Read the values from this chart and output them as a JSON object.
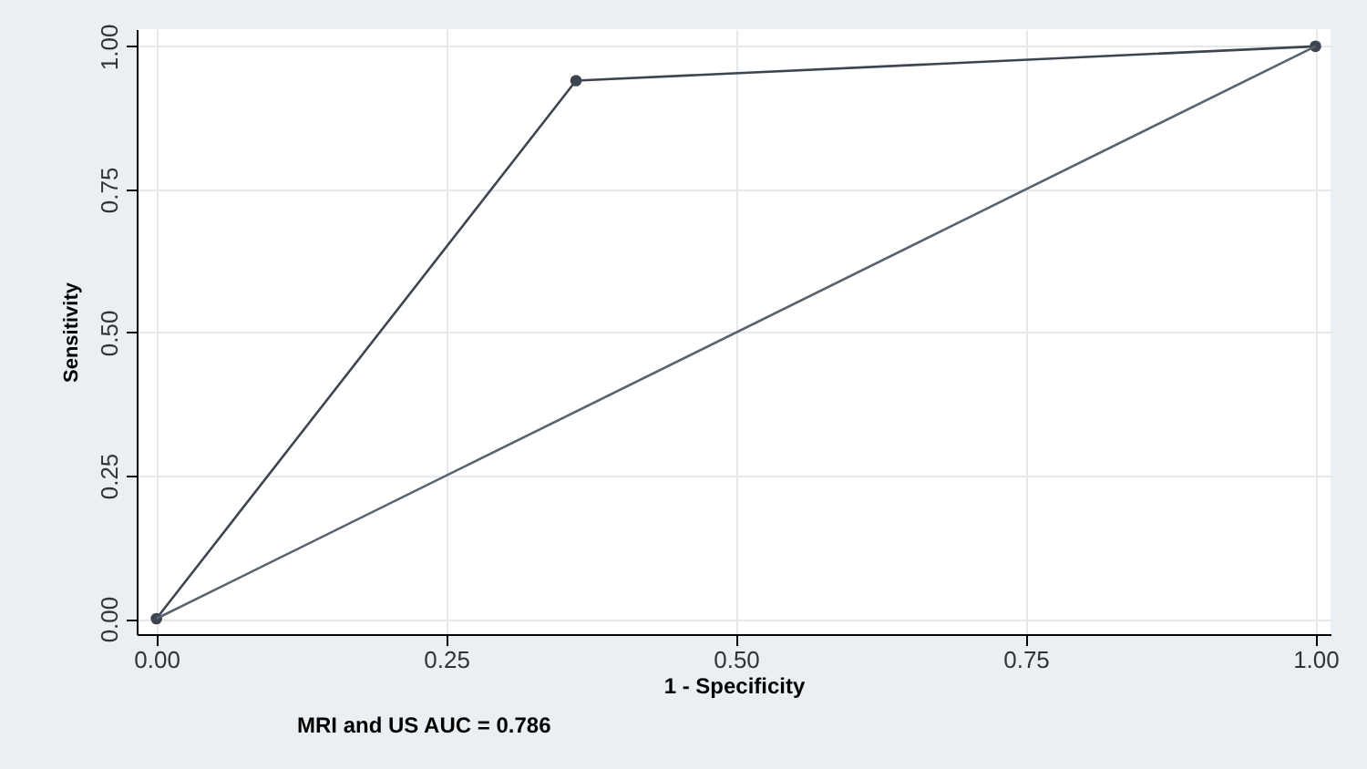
{
  "chart_data": {
    "type": "line",
    "xlabel": "1 -  Specificity",
    "ylabel": "Sensitivity",
    "annotations": [
      "MRI and US AUC    =    0.786"
    ],
    "series": [
      {
        "color": "#3d4550",
        "x": [
          0,
          0.362,
          1
        ],
        "values": [
          0,
          0.94,
          1
        ],
        "marker": "circle"
      },
      {
        "color": "#5a6470",
        "x": [
          0,
          1
        ],
        "values": [
          0,
          1
        ],
        "marker": "none"
      }
    ],
    "xlim": [
      -0.017,
      1.013
    ],
    "ylim": [
      -0.027,
      1.03
    ],
    "xticks": [
      {
        "value": 0,
        "label": "0.00"
      },
      0.25,
      {
        "value": 0.5,
        "label": "0.50"
      },
      0.75,
      {
        "value": 1,
        "label": "1.00"
      }
    ],
    "yticks": [
      {
        "value": 0,
        "label": "0.00"
      },
      0.25,
      {
        "value": 0.5,
        "label": "0.50"
      },
      0.75,
      {
        "value": 1,
        "label": "1.00"
      }
    ],
    "grid": true,
    "line_style": "solid"
  }
}
